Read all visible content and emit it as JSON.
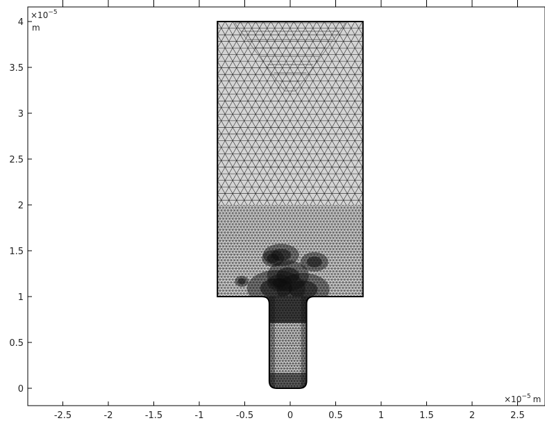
{
  "chart_data": {
    "type": "mesh",
    "x_axis": {
      "ticks": [
        -2.5,
        -2,
        -1.5,
        -1,
        -0.5,
        0,
        0.5,
        1,
        1.5,
        2,
        2.5
      ],
      "tick_labels": [
        "-2.5",
        "-2",
        "-1.5",
        "-1",
        "-0.5",
        "0",
        "0.5",
        "1",
        "1.5",
        "2",
        "2.5"
      ],
      "multiplier": "×10",
      "exponent": "−5",
      "unit": "m",
      "range": [
        -2.9,
        2.8
      ]
    },
    "y_axis": {
      "ticks": [
        0,
        0.5,
        1,
        1.5,
        2,
        2.5,
        3,
        3.5,
        4
      ],
      "tick_labels": [
        "0",
        "0.5",
        "1",
        "1.5",
        "2",
        "2.5",
        "3",
        "3.5",
        "4"
      ],
      "multiplier": "×10",
      "exponent": "−5",
      "unit": "m",
      "range": [
        -0.18,
        4.2
      ]
    },
    "geometry": {
      "upper_rectangle": {
        "x": [
          -0.8,
          0.8
        ],
        "y": [
          1.0,
          4.0
        ]
      },
      "channel": {
        "x": [
          -0.23,
          0.18
        ],
        "y": [
          0.0,
          1.0
        ],
        "fillet_radius": 0.08
      },
      "mesh_interface_y": 2.0
    },
    "colors": {
      "mesh_fill": "#d4d4d4",
      "mesh_line": "#1a1a1a",
      "dense_region": "#0d0d0d",
      "axis": "#000000"
    }
  }
}
